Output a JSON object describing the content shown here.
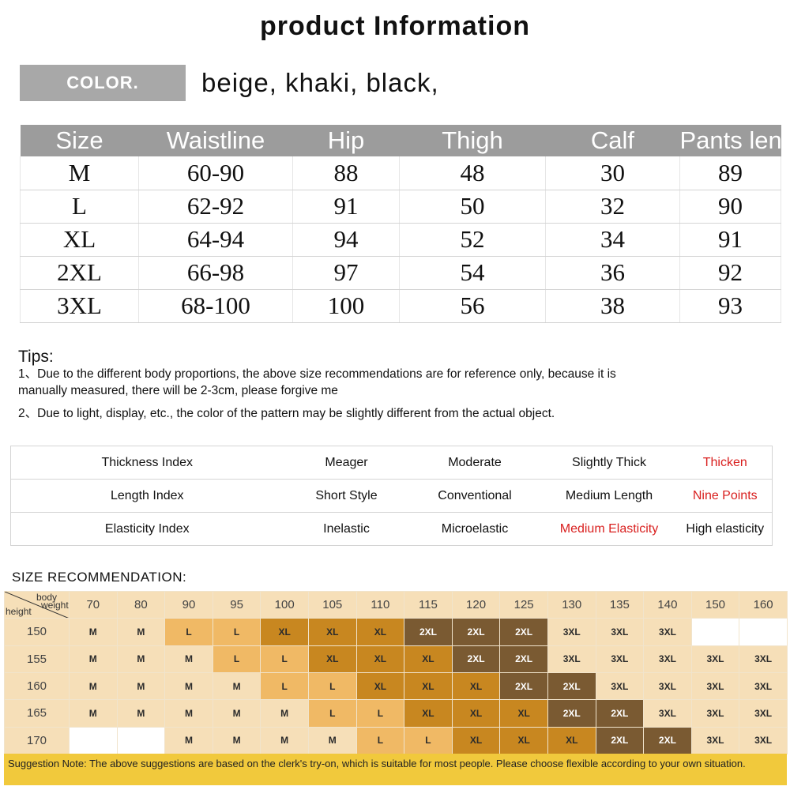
{
  "title": "product Information",
  "color": {
    "label": "COLOR.",
    "values": "beige, khaki, black,"
  },
  "size_table": {
    "headers": [
      "Size",
      "Waistline",
      "Hip",
      "Thigh",
      "Calf",
      "Pants length"
    ],
    "rows": [
      [
        "M",
        "60-90",
        "88",
        "48",
        "30",
        "89"
      ],
      [
        "L",
        "62-92",
        "91",
        "50",
        "32",
        "90"
      ],
      [
        "XL",
        "64-94",
        "94",
        "52",
        "34",
        "91"
      ],
      [
        "2XL",
        "66-98",
        "97",
        "54",
        "36",
        "92"
      ],
      [
        "3XL",
        "68-100",
        "100",
        "56",
        "38",
        "93"
      ]
    ]
  },
  "tips": {
    "title": "Tips:",
    "items": [
      "1、Due to the different body proportions, the above size recommendations are for reference only, because it is manually measured, there will be 2-3cm, please forgive me",
      "2、Due to light, display, etc., the color of the pattern may be slightly different from the actual object."
    ]
  },
  "index_table": {
    "rows": [
      {
        "name": "Thickness Index",
        "options": [
          "Meager",
          "Moderate",
          "Slightly Thick",
          "Thicken"
        ],
        "selected": 3
      },
      {
        "name": "Length Index",
        "options": [
          "Short Style",
          "Conventional",
          "Medium Length",
          "Nine Points"
        ],
        "selected": 3
      },
      {
        "name": "Elasticity Index",
        "options": [
          "Inelastic",
          "Microelastic",
          "Medium Elasticity",
          "High elasticity"
        ],
        "selected": 2
      }
    ],
    "highlight_color": "#d9201f"
  },
  "recommendation": {
    "title": "SIZE RECOMMENDATION:",
    "corner": {
      "body": "body",
      "weight": "weight",
      "height": "height"
    },
    "weights": [
      "70",
      "80",
      "90",
      "95",
      "100",
      "105",
      "110",
      "115",
      "120",
      "125",
      "130",
      "135",
      "140",
      "150",
      "160"
    ],
    "heights": [
      "150",
      "155",
      "160",
      "165",
      "170"
    ],
    "rows": [
      [
        "M",
        "M",
        "L",
        "L",
        "XL",
        "XL",
        "XL",
        "2XL",
        "2XL",
        "2XL",
        "3XL",
        "3XL",
        "3XL",
        "",
        ""
      ],
      [
        "M",
        "M",
        "M",
        "L",
        "L",
        "XL",
        "XL",
        "XL",
        "2XL",
        "2XL",
        "3XL",
        "3XL",
        "3XL",
        "3XL",
        "3XL"
      ],
      [
        "M",
        "M",
        "M",
        "M",
        "L",
        "L",
        "XL",
        "XL",
        "XL",
        "2XL",
        "2XL",
        "3XL",
        "3XL",
        "3XL",
        "3XL"
      ],
      [
        "M",
        "M",
        "M",
        "M",
        "M",
        "L",
        "L",
        "XL",
        "XL",
        "XL",
        "2XL",
        "2XL",
        "3XL",
        "3XL",
        "3XL"
      ],
      [
        "",
        "",
        "M",
        "M",
        "M",
        "M",
        "L",
        "L",
        "XL",
        "XL",
        "XL",
        "2XL",
        "2XL",
        "3XL",
        "3XL"
      ]
    ],
    "colors": {
      "M": "#f6dfb8",
      "L": "#f0b965",
      "XL": "#c88720",
      "2XL": "#7a5a32",
      "3XL": "#f6dfb8",
      "blank": "#ffffff"
    },
    "note": "Suggestion Note: The above suggestions are based on the clerk's try-on, which is suitable for most people. Please choose flexible according to your own situation."
  }
}
